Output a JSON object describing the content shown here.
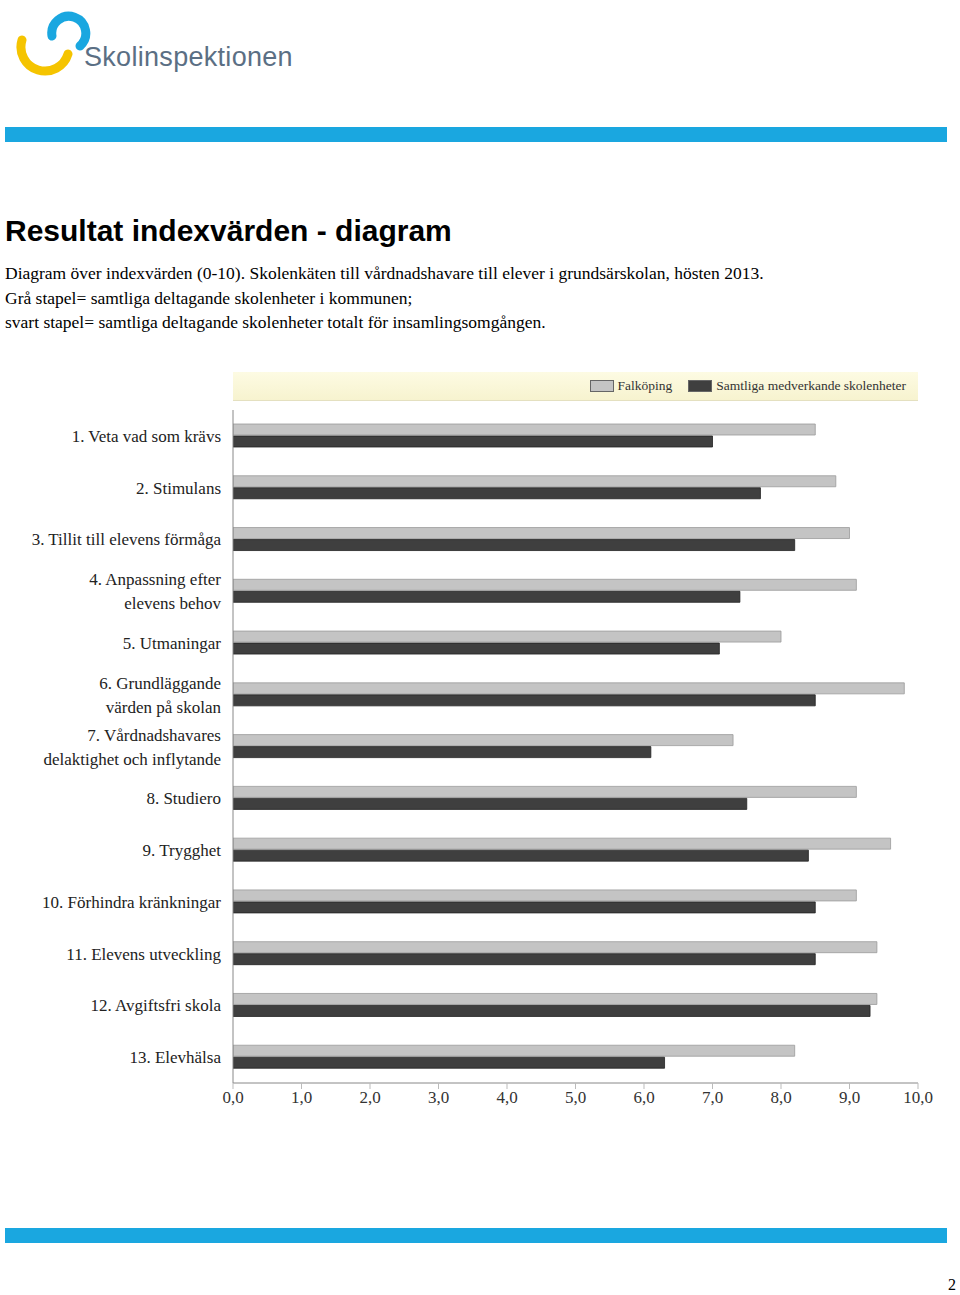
{
  "logo": "Skolinspektionen",
  "heading": "Resultat indexvärden - diagram",
  "description": [
    "Diagram över indexvärden (0-10). Skolenkäten till vårdnadshavare till elever i grundsärskolan, hösten 2013.",
    "Grå stapel= samtliga deltagande skolenheter i kommunen;",
    "svart stapel= samtliga deltagande skolenheter totalt för insamlingsomgången."
  ],
  "page_number": "2",
  "chart_data": {
    "type": "bar",
    "orientation": "horizontal",
    "grid": false,
    "legend": "top right",
    "categories": [
      "1. Veta vad som krävs",
      "2. Stimulans",
      "3. Tillit till elevens förmåga",
      "4. Anpassning efter elevens behov",
      "5. Utmaningar",
      "6. Grundläggande värden på skolan",
      "7. Vårdnadshavares delaktighet och inflytande",
      "8. Studiero",
      "9. Trygghet",
      "10. Förhindra kränkningar",
      "11. Elevens utveckling",
      "12. Avgiftsfri skola",
      "13. Elevhälsa"
    ],
    "series": [
      {
        "name": "Falköping",
        "color": "#c4c4c4",
        "values": [
          8.5,
          8.8,
          9.0,
          9.1,
          8.0,
          9.8,
          7.3,
          9.1,
          9.6,
          9.1,
          9.4,
          9.4,
          8.2
        ]
      },
      {
        "name": "Samtliga medverkande skolenheter",
        "color": "#3f3f3f",
        "values": [
          7.0,
          7.7,
          8.2,
          7.4,
          7.1,
          8.5,
          6.1,
          7.5,
          8.4,
          8.5,
          8.5,
          9.3,
          6.3
        ]
      }
    ],
    "xlim": [
      0,
      10
    ],
    "xticks": [
      {
        "value": 0,
        "label": "0,0"
      },
      {
        "value": 1,
        "label": "1,0"
      },
      {
        "value": 2,
        "label": "2,0"
      },
      {
        "value": 3,
        "label": "3,0"
      },
      {
        "value": 4,
        "label": "4,0"
      },
      {
        "value": 5,
        "label": "5,0"
      },
      {
        "value": 6,
        "label": "6,0"
      },
      {
        "value": 7,
        "label": "7,0"
      },
      {
        "value": 8,
        "label": "8,0"
      },
      {
        "value": 9,
        "label": "9,0"
      },
      {
        "value": 10,
        "label": "10,0"
      }
    ]
  }
}
